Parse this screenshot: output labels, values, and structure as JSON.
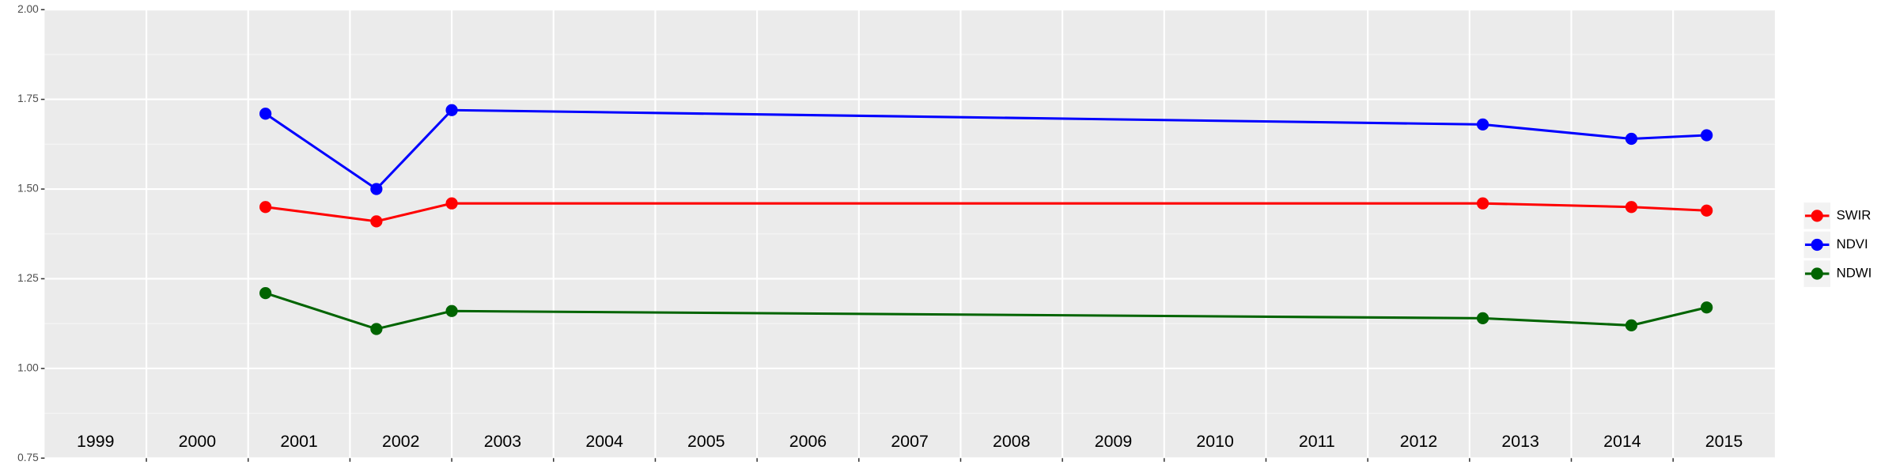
{
  "chart_data": {
    "type": "line",
    "x": [
      2001.17,
      2002.26,
      2003.0,
      2013.13,
      2014.59,
      2015.33
    ],
    "series": [
      {
        "name": "SWIR",
        "color": "#ff0000",
        "values": [
          1.45,
          1.41,
          1.46,
          1.46,
          1.45,
          1.44
        ]
      },
      {
        "name": "NDVI",
        "color": "#0000ff",
        "values": [
          1.71,
          1.5,
          1.72,
          1.68,
          1.64,
          1.65
        ]
      },
      {
        "name": "NDWI",
        "color": "#006400",
        "values": [
          1.21,
          1.11,
          1.16,
          1.14,
          1.12,
          1.17
        ]
      }
    ],
    "xlim": [
      1999,
      2016
    ],
    "xticks": [
      {
        "value": 1999.5,
        "label": "1999"
      },
      {
        "value": 2000.5,
        "label": "2000"
      },
      {
        "value": 2001.5,
        "label": "2001"
      },
      {
        "value": 2002.5,
        "label": "2002"
      },
      {
        "value": 2003.5,
        "label": "2003"
      },
      {
        "value": 2004.5,
        "label": "2004"
      },
      {
        "value": 2005.5,
        "label": "2005"
      },
      {
        "value": 2006.5,
        "label": "2006"
      },
      {
        "value": 2007.5,
        "label": "2007"
      },
      {
        "value": 2008.5,
        "label": "2008"
      },
      {
        "value": 2009.5,
        "label": "2009"
      },
      {
        "value": 2010.5,
        "label": "2010"
      },
      {
        "value": 2011.5,
        "label": "2011"
      },
      {
        "value": 2012.5,
        "label": "2012"
      },
      {
        "value": 2013.5,
        "label": "2013"
      },
      {
        "value": 2014.5,
        "label": "2014"
      },
      {
        "value": 2015.5,
        "label": "2015"
      }
    ],
    "x_gridlines": [
      2000,
      2001,
      2002,
      2003,
      2004,
      2005,
      2006,
      2007,
      2008,
      2009,
      2010,
      2011,
      2012,
      2013,
      2014,
      2015
    ],
    "ylim": [
      0.75,
      2.0
    ],
    "yticks": [
      {
        "value": 0.75,
        "label": "0.75"
      },
      {
        "value": 1.0,
        "label": "1.00"
      },
      {
        "value": 1.25,
        "label": "1.25"
      },
      {
        "value": 1.5,
        "label": "1.50"
      },
      {
        "value": 1.75,
        "label": "1.75"
      },
      {
        "value": 2.0,
        "label": "2.00"
      }
    ],
    "y_minor_gridlines": [
      0.875,
      1.125,
      1.375,
      1.625,
      1.875
    ],
    "grid": true,
    "legend": "right"
  }
}
